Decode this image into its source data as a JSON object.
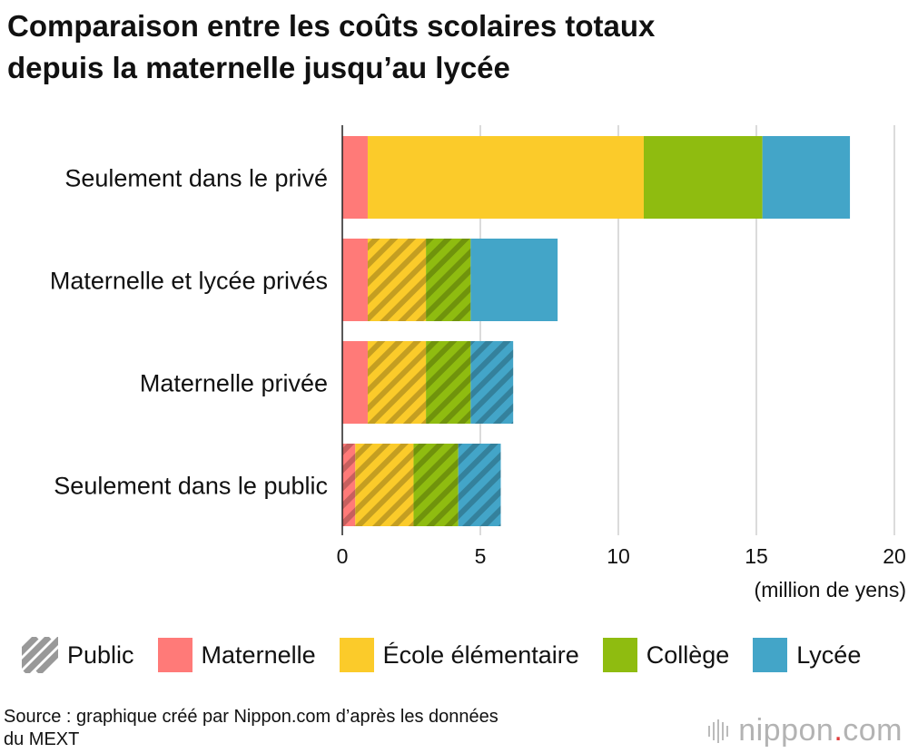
{
  "title_line1": "Comparaison entre les coûts scolaires totaux",
  "title_line2": "depuis la maternelle jusqu’au lycée",
  "unit_label": "(million de yens)",
  "source_line1": "Source : graphique créé par Nippon.com d’après les données",
  "source_line2": "du MEXT",
  "logo_text": "nippon",
  "logo_dot": ".",
  "logo_suffix": "com",
  "legend": {
    "public": "Public",
    "maternelle": "Maternelle",
    "elementaire": "École élémentaire",
    "college": "Collège",
    "lycee": "Lycée"
  },
  "colors": {
    "maternelle": "#ff7a78",
    "elementaire": "#fbcb2a",
    "college": "#8fbc10",
    "lycee": "#43a5c8",
    "grid": "#cfcfcf",
    "hatch": "#999999"
  },
  "chart_data": {
    "type": "bar",
    "orientation": "horizontal",
    "stacked": true,
    "categories": [
      "Seulement dans le privé",
      "Maternelle et lycée privés",
      "Maternelle privée",
      "Seulement dans le public"
    ],
    "series": [
      {
        "name": "Maternelle",
        "color_key": "maternelle",
        "values": [
          0.92,
          0.92,
          0.92,
          0.47
        ],
        "public": [
          false,
          false,
          false,
          true
        ]
      },
      {
        "name": "École élémentaire",
        "color_key": "elementaire",
        "values": [
          10.0,
          2.11,
          2.11,
          2.11
        ],
        "public": [
          false,
          true,
          true,
          true
        ]
      },
      {
        "name": "Collège",
        "color_key": "college",
        "values": [
          4.3,
          1.62,
          1.62,
          1.62
        ],
        "public": [
          false,
          true,
          true,
          true
        ]
      },
      {
        "name": "Lycée",
        "color_key": "lycee",
        "values": [
          3.17,
          3.15,
          1.54,
          1.54
        ],
        "public": [
          false,
          false,
          true,
          true
        ]
      }
    ],
    "xlim": [
      0,
      20
    ],
    "xticks": [
      0,
      5,
      10,
      15,
      20
    ],
    "grid": true,
    "legend_position": "bottom"
  }
}
